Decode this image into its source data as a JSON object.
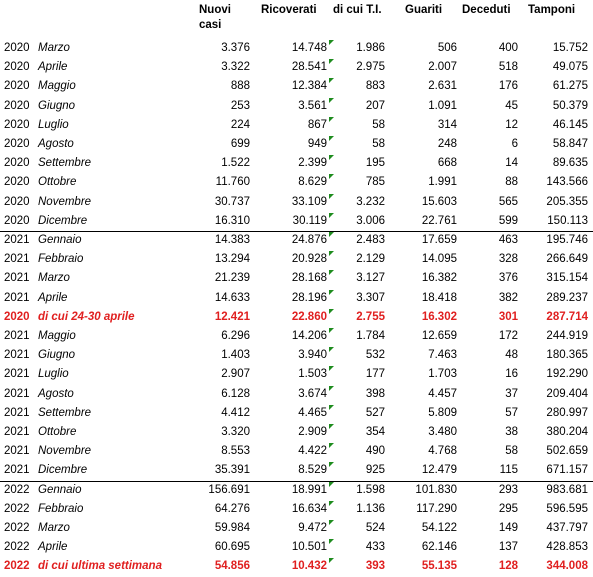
{
  "table": {
    "header": [
      "Nuovi casi",
      "Ricoverati",
      "di cui T.I.",
      "Guariti",
      "Deceduti",
      "Tamponi"
    ],
    "groups": [
      {
        "rows": [
          {
            "cells": [
              "2020",
              "Marzo",
              "3.376",
              "14.748",
              "1.986",
              "506",
              "400",
              "15.752"
            ]
          },
          {
            "cells": [
              "2020",
              "Aprile",
              "3.322",
              "28.541",
              "2.975",
              "2.007",
              "518",
              "49.075"
            ]
          },
          {
            "cells": [
              "2020",
              "Maggio",
              "888",
              "12.384",
              "883",
              "2.631",
              "176",
              "61.275"
            ]
          },
          {
            "cells": [
              "2020",
              "Giugno",
              "253",
              "3.561",
              "207",
              "1.091",
              "45",
              "50.379"
            ]
          },
          {
            "cells": [
              "2020",
              "Luglio",
              "224",
              "867",
              "58",
              "314",
              "12",
              "46.145"
            ]
          },
          {
            "cells": [
              "2020",
              "Agosto",
              "699",
              "949",
              "58",
              "248",
              "6",
              "58.847"
            ]
          },
          {
            "cells": [
              "2020",
              "Settembre",
              "1.522",
              "2.399",
              "195",
              "668",
              "14",
              "89.635"
            ]
          },
          {
            "cells": [
              "2020",
              "Ottobre",
              "11.760",
              "8.629",
              "785",
              "1.991",
              "88",
              "143.566"
            ]
          },
          {
            "cells": [
              "2020",
              "Novembre",
              "30.737",
              "33.109",
              "3.232",
              "15.603",
              "565",
              "205.355"
            ]
          },
          {
            "cells": [
              "2020",
              "Dicembre",
              "16.310",
              "30.119",
              "3.006",
              "22.761",
              "599",
              "150.113"
            ]
          }
        ]
      },
      {
        "rows": [
          {
            "cells": [
              "2021",
              "Gennaio",
              "14.383",
              "24.876",
              "2.483",
              "17.659",
              "463",
              "195.746"
            ]
          },
          {
            "cells": [
              "2021",
              "Febbraio",
              "13.294",
              "20.928",
              "2.129",
              "14.095",
              "328",
              "266.649"
            ]
          },
          {
            "cells": [
              "2021",
              "Marzo",
              "21.239",
              "28.168",
              "3.127",
              "16.382",
              "376",
              "315.154"
            ]
          },
          {
            "cells": [
              "2021",
              "Aprile",
              "14.633",
              "28.196",
              "3.307",
              "18.418",
              "382",
              "289.237"
            ]
          },
          {
            "cells": [
              "2020",
              "di cui 24-30 aprile",
              "12.421",
              "22.860",
              "2.755",
              "16.302",
              "301",
              "287.714"
            ],
            "color": "#e02020"
          },
          {
            "cells": [
              "2021",
              "Maggio",
              "6.296",
              "14.206",
              "1.784",
              "12.659",
              "172",
              "244.919"
            ]
          },
          {
            "cells": [
              "2021",
              "Giugno",
              "1.403",
              "3.940",
              "532",
              "7.463",
              "48",
              "180.365"
            ]
          },
          {
            "cells": [
              "2021",
              "Luglio",
              "2.907",
              "1.503",
              "177",
              "1.703",
              "16",
              "192.290"
            ]
          },
          {
            "cells": [
              "2021",
              "Agosto",
              "6.128",
              "3.674",
              "398",
              "4.457",
              "37",
              "209.404"
            ]
          },
          {
            "cells": [
              "2021",
              "Settembre",
              "4.412",
              "4.465",
              "527",
              "5.809",
              "57",
              "280.997"
            ]
          },
          {
            "cells": [
              "2021",
              "Ottobre",
              "3.320",
              "2.909",
              "354",
              "3.480",
              "38",
              "380.204"
            ]
          },
          {
            "cells": [
              "2021",
              "Novembre",
              "8.553",
              "4.422",
              "490",
              "4.768",
              "58",
              "502.659"
            ]
          },
          {
            "cells": [
              "2021",
              "Dicembre",
              "35.391",
              "8.529",
              "925",
              "12.479",
              "115",
              "671.157"
            ]
          }
        ]
      },
      {
        "rows": [
          {
            "cells": [
              "2022",
              "Gennaio",
              "156.691",
              "18.991",
              "1.598",
              "101.830",
              "293",
              "983.681"
            ]
          },
          {
            "cells": [
              "2022",
              "Febbraio",
              "64.276",
              "16.634",
              "1.136",
              "117.290",
              "295",
              "596.595"
            ]
          },
          {
            "cells": [
              "2022",
              "Marzo",
              "59.984",
              "9.472",
              "524",
              "54.122",
              "149",
              "437.797"
            ]
          },
          {
            "cells": [
              "2022",
              "Aprile",
              "60.695",
              "10.501",
              "433",
              "62.146",
              "137",
              "428.853"
            ]
          },
          {
            "cells": [
              "2022",
              "di cui ultima settimana",
              "54.856",
              "10.432",
              "393",
              "55.135",
              "128",
              "344.008"
            ],
            "color": "#e02020"
          }
        ]
      }
    ]
  }
}
